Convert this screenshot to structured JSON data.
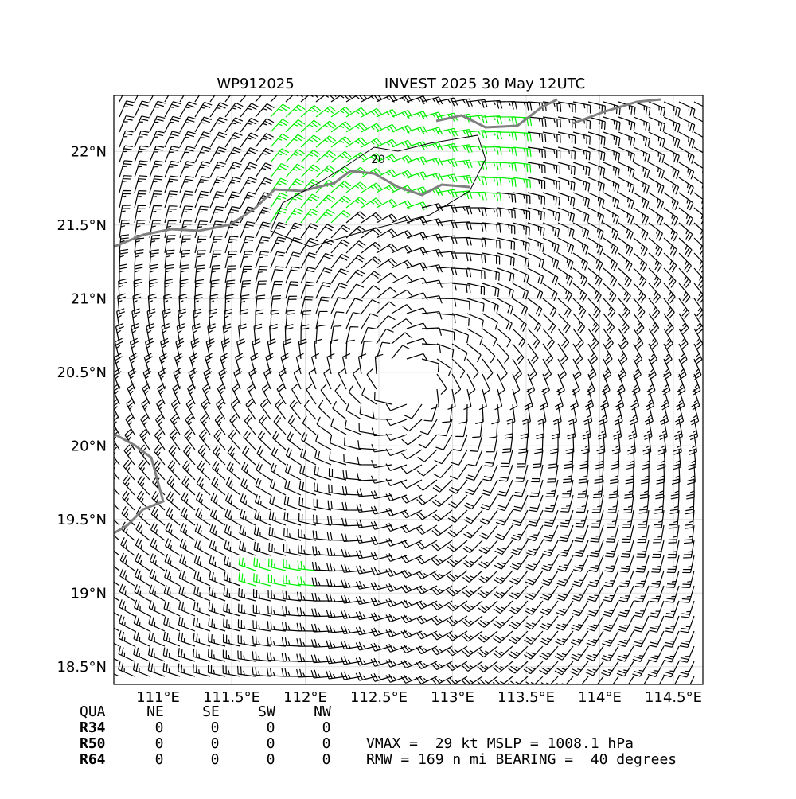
{
  "title_left": "WP912025",
  "title_right": "INVEST 2025 30 May 12UTC",
  "map": {
    "xlim": [
      110.7,
      114.7
    ],
    "ylim": [
      18.38,
      22.38
    ],
    "xticks": [
      {
        "value": 111,
        "label": "111°E"
      },
      {
        "value": 111.5,
        "label": "111.5°E"
      },
      {
        "value": 112,
        "label": "112°E"
      },
      {
        "value": 112.5,
        "label": "112.5°E"
      },
      {
        "value": 113,
        "label": "113°E"
      },
      {
        "value": 113.5,
        "label": "113.5°E"
      },
      {
        "value": 114,
        "label": "114°E"
      },
      {
        "value": 114.5,
        "label": "114.5°E"
      }
    ],
    "yticks": [
      {
        "value": 18.5,
        "label": "18.5°N"
      },
      {
        "value": 19,
        "label": "19°N"
      },
      {
        "value": 19.5,
        "label": "19.5°N"
      },
      {
        "value": 20,
        "label": "20°N"
      },
      {
        "value": 20.5,
        "label": "20.5°N"
      },
      {
        "value": 21,
        "label": "21°N"
      },
      {
        "value": 21.5,
        "label": "21.5°N"
      },
      {
        "value": 22,
        "label": "22°N"
      }
    ],
    "contour_label": "20"
  },
  "table": {
    "header": [
      "QUA",
      "NE",
      "SE",
      "SW",
      "NW"
    ],
    "rows": [
      [
        "R34",
        "0",
        "0",
        "0",
        "0"
      ],
      [
        "R50",
        "0",
        "0",
        "0",
        "0"
      ],
      [
        "R64",
        "0",
        "0",
        "0",
        "0"
      ]
    ]
  },
  "info": [
    "VMAX =  29 kt MSLP = 1008.1 hPa",
    "RMW = 169 n mi BEARING =  40 degrees"
  ]
}
